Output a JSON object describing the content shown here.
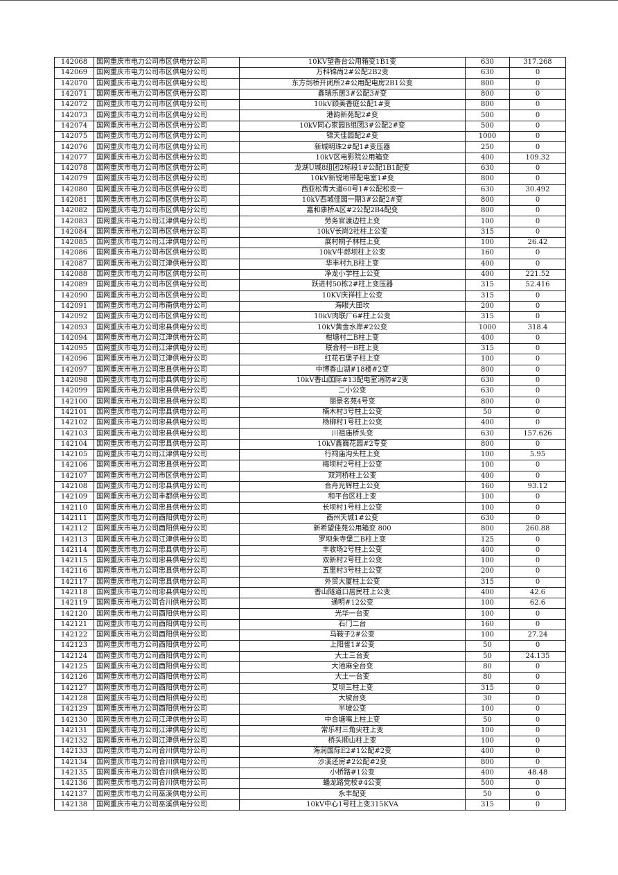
{
  "table": {
    "rows": [
      [
        "142068",
        "国网重庆市电力公司市区供电分公司",
        "10KV望香台公用箱变1B1变",
        "630",
        "317.268"
      ],
      [
        "142069",
        "国网重庆市电力公司市区供电分公司",
        "万科锦尚2#公配2B2变",
        "630",
        "0"
      ],
      [
        "142070",
        "国网重庆市电力公司市区供电分公司",
        "东方剑桥开闭所2#公用配电房2B1公变",
        "800",
        "0"
      ],
      [
        "142071",
        "国网重庆市电力公司市区供电分公司",
        "鑫瑞乐居3#公配3#变",
        "800",
        "0"
      ],
      [
        "142072",
        "国网重庆市电力公司市区供电分公司",
        "10kV顾美香庭公配1#变",
        "800",
        "0"
      ],
      [
        "142073",
        "国网重庆市电力公司市区供电分公司",
        "港韵新苑配2#变",
        "500",
        "0"
      ],
      [
        "142074",
        "国网重庆市电力公司市区供电分公司",
        "10kV同心家园B组团3#公配2#变",
        "500",
        "0"
      ],
      [
        "142075",
        "国网重庆市电力公司市区供电分公司",
        "锦天佳园配2#变",
        "1000",
        "0"
      ],
      [
        "142076",
        "国网重庆市电力公司市区供电分公司",
        "新城明珠2#配1#变压器",
        "250",
        "0"
      ],
      [
        "142077",
        "国网重庆市电力公司市区供电分公司",
        "10kV区电影院公用箱变",
        "400",
        "109.32"
      ],
      [
        "142078",
        "国网重庆市电力公司市区供电分公司",
        "龙湖U城8组团2标段1#公配1B1配变",
        "630",
        "0"
      ],
      [
        "142079",
        "国网重庆市电力公司市区供电分公司",
        "10kV新锐地带配电室1#变",
        "800",
        "0"
      ],
      [
        "142080",
        "国网重庆市电力公司市区供电分公司",
        "西亚松青大道60号1#公配松变一",
        "630",
        "30.492"
      ],
      [
        "142081",
        "国网重庆市电力公司市区供电分公司",
        "10kV西城佳园一期3#公配2#变",
        "800",
        "0"
      ],
      [
        "142082",
        "国网重庆市电力公司市区供电分公司",
        "嘉和康桥A区#2公配2B4配变",
        "800",
        "0"
      ],
      [
        "142083",
        "国网重庆市电力公司江津供电分公司",
        "劳务官渡边柱上变",
        "100",
        "0"
      ],
      [
        "142084",
        "国网重庆市电力公司市区供电分公司",
        "10kV长岗2社柱上公变",
        "315",
        "0"
      ],
      [
        "142085",
        "国网重庆市电力公司江津供电分公司",
        "展村桐子林柱上变",
        "100",
        "26.42"
      ],
      [
        "142086",
        "国网重庆市电力公司市区供电分公司",
        "10kV牛郎坝柱上公变",
        "160",
        "0"
      ],
      [
        "142087",
        "国网重庆市电力公司江津供电分公司",
        "华丰村九B柱上变",
        "400",
        "0"
      ],
      [
        "142088",
        "国网重庆市电力公司市区供电分公司",
        "净龙小学柱上公变",
        "400",
        "221.52"
      ],
      [
        "142089",
        "国网重庆市电力公司市区供电分公司",
        "跃进村50栋2#柱上变压器",
        "315",
        "52.416"
      ],
      [
        "142090",
        "国网重庆市电力公司市区供电分公司",
        "10KV庆祥柱上公变",
        "315",
        "0"
      ],
      [
        "142091",
        "国网重庆市电力公司市南供电分公司",
        "海眼大田坎",
        "200",
        "0"
      ],
      [
        "142092",
        "国网重庆市电力公司市区供电分公司",
        "10kV肉联厂6#柱上公变",
        "315",
        "0"
      ],
      [
        "142093",
        "国网重庆市电力公司忠县供电分公司",
        "10kV黄金水岸#2公变",
        "1000",
        "318.4"
      ],
      [
        "142094",
        "国网重庆市电力公司江津供电分公司",
        "柑塘村二B柱上变",
        "400",
        "0"
      ],
      [
        "142095",
        "国网重庆市电力公司江津供电分公司",
        "联合村一B柱上变",
        "315",
        "0"
      ],
      [
        "142096",
        "国网重庆市电力公司江津供电分公司",
        "红花石堡子柱上变",
        "100",
        "0"
      ],
      [
        "142097",
        "国网重庆市电力公司忠县供电分公司",
        "中博香山湖#18楼#2变",
        "800",
        "0"
      ],
      [
        "142098",
        "国网重庆市电力公司忠县供电分公司",
        "10kV香山国际#13配电室消防#2变",
        "630",
        "0"
      ],
      [
        "142099",
        "国网重庆市电力公司忠县供电分公司",
        "二小公变",
        "630",
        "0"
      ],
      [
        "142100",
        "国网重庆市电力公司忠县供电分公司",
        "丽景名苑4号变",
        "800",
        "0"
      ],
      [
        "142101",
        "国网重庆市电力公司忠县供电分公司",
        "楠木村3号柱上公变",
        "50",
        "0"
      ],
      [
        "142102",
        "国网重庆市电力公司忠县供电分公司",
        "杨柳村1号柱上公变",
        "400",
        "0"
      ],
      [
        "142103",
        "国网重庆市电力公司忠县供电分公司",
        "川祖庙桥头变",
        "630",
        "157.626"
      ],
      [
        "142104",
        "国网重庆市电力公司忠县供电分公司",
        "10kV鑫巍花园#2专变",
        "800",
        "0"
      ],
      [
        "142105",
        "国网重庆市电力公司江津供电分公司",
        "行祠庙沟头柱上变",
        "100",
        "5.95"
      ],
      [
        "142106",
        "国网重庆市电力公司忠县供电分公司",
        "梅坝村2号柱上公变",
        "100",
        "0"
      ],
      [
        "142107",
        "国网重庆市电力公司市区供电分公司",
        "双河桥柱上公变",
        "400",
        "0"
      ],
      [
        "142108",
        "国网重庆市电力公司忠县供电分公司",
        "合舟光辉柱上公变",
        "160",
        "93.12"
      ],
      [
        "142109",
        "国网重庆市电力公司丰都供电分公司",
        "和平台区柱上变",
        "100",
        "0"
      ],
      [
        "142110",
        "国网重庆市电力公司忠县供电分公司",
        "长坝村1号柱上公变",
        "100",
        "0"
      ],
      [
        "142111",
        "国网重庆市电力公司酉阳供电分公司",
        "酉州天城1#公变",
        "630",
        "0"
      ],
      [
        "142112",
        "国网重庆市电力公司酉阳供电分公司",
        "新希望佳苑公用箱变 800",
        "800",
        "260.88"
      ],
      [
        "142113",
        "国网重庆市电力公司江津供电分公司",
        "罗坝朱寺堡二B柱上变",
        "125",
        "0"
      ],
      [
        "142114",
        "国网重庆市电力公司忠县供电分公司",
        "丰收场2号柱上公变",
        "400",
        "0"
      ],
      [
        "142115",
        "国网重庆市电力公司忠县供电分公司",
        "双新村2号柱上公变",
        "100",
        "0"
      ],
      [
        "142116",
        "国网重庆市电力公司忠县供电分公司",
        "五里村3号柱上公变",
        "200",
        "0"
      ],
      [
        "142117",
        "国网重庆市电力公司忠县供电分公司",
        "外贸大厦柱上公变",
        "315",
        "0"
      ],
      [
        "142118",
        "国网重庆市电力公司忠县供电分公司",
        "香山隧道口居民柱上公变",
        "400",
        "42.6"
      ],
      [
        "142119",
        "国网重庆市电力公司合川供电分公司",
        "通明#12公变",
        "100",
        "62.6"
      ],
      [
        "142120",
        "国网重庆市电力公司酉阳供电分公司",
        "光华一台变",
        "100",
        "0"
      ],
      [
        "142121",
        "国网重庆市电力公司酉阳供电分公司",
        "石门二台",
        "160",
        "0"
      ],
      [
        "142122",
        "国网重庆市电力公司酉阳供电分公司",
        "马鞍子2#公变",
        "100",
        "27.24"
      ],
      [
        "142123",
        "国网重庆市电力公司酉阳供电分公司",
        "上阳雀1#公变",
        "50",
        "0"
      ],
      [
        "142124",
        "国网重庆市电力公司酉阳供电分公司",
        "大土三台变",
        "50",
        "24.135"
      ],
      [
        "142125",
        "国网重庆市电力公司酉阳供电分公司",
        "大池麻全台变",
        "80",
        "0"
      ],
      [
        "142126",
        "国网重庆市电力公司酉阳供电分公司",
        "大土一台变",
        "80",
        "0"
      ],
      [
        "142127",
        "国网重庆市电力公司酉阳供电分公司",
        "艾坝三柱上变",
        "315",
        "0"
      ],
      [
        "142128",
        "国网重庆市电力公司酉阳供电分公司",
        "大坡台变",
        "30",
        "0"
      ],
      [
        "142129",
        "国网重庆市电力公司酉阳供电分公司",
        "半坡公变",
        "100",
        "0"
      ],
      [
        "142130",
        "国网重庆市电力公司江津供电分公司",
        "中合塘嘴上柱上变",
        "50",
        "0"
      ],
      [
        "142131",
        "国网重庆市电力公司江津供电分公司",
        "常乐村三角尖柱上变",
        "100",
        "0"
      ],
      [
        "142132",
        "国网重庆市电力公司江津供电分公司",
        "桥头顺山柱上变",
        "100",
        "0"
      ],
      [
        "142133",
        "国网重庆市电力公司合川供电分公司",
        "海润国际E2#1公配#2变",
        "400",
        "0"
      ],
      [
        "142134",
        "国网重庆市电力公司合川供电分公司",
        "沙溪还房#2公配#2变",
        "800",
        "0"
      ],
      [
        "142135",
        "国网重庆市电力公司合川供电分公司",
        "小桥路#1公变",
        "400",
        "48.48"
      ],
      [
        "142136",
        "国网重庆市电力公司合川供电分公司",
        "蟠龙路党校#4公变",
        "500",
        "0"
      ],
      [
        "142137",
        "国网重庆市电力公司巫溪供电分公司",
        "永丰配变",
        "50",
        "0"
      ],
      [
        "142138",
        "国网重庆市电力公司巫溪供电分公司",
        "10kV中心1号柱上变315KVA",
        "315",
        "0"
      ]
    ]
  }
}
